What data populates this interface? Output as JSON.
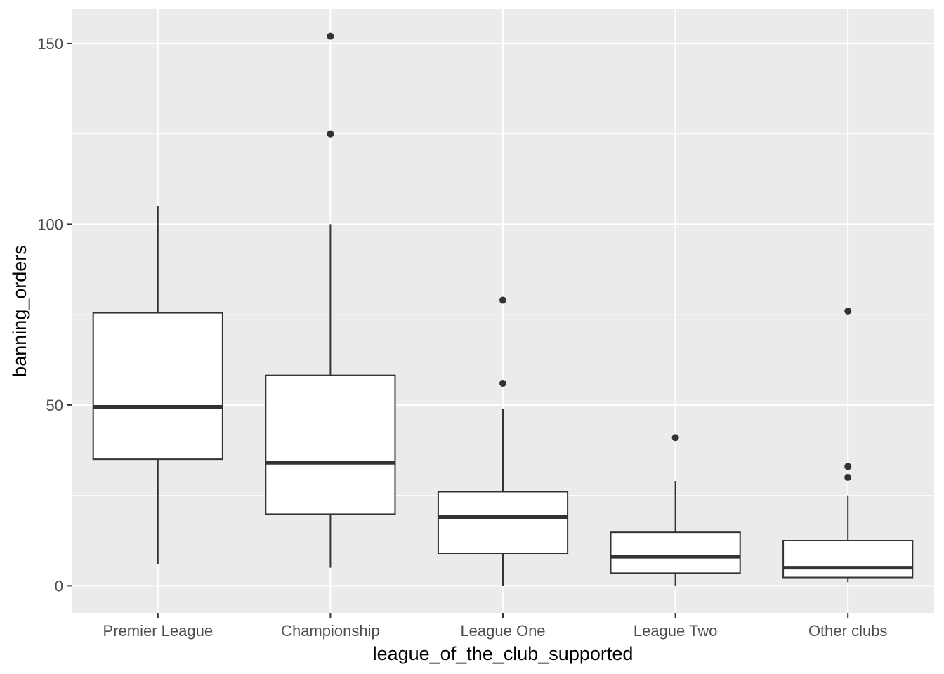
{
  "chart_data": {
    "type": "box",
    "xlabel": "league_of_the_club_supported",
    "ylabel": "banning_orders",
    "ylim": [
      -7.5,
      159.5
    ],
    "y_ticks": [
      0,
      50,
      100,
      150
    ],
    "y_minor_ticks": [
      25,
      75,
      125
    ],
    "grid": true,
    "categories": [
      "Premier League",
      "Championship",
      "League One",
      "League Two",
      "Other clubs"
    ],
    "boxes": [
      {
        "category": "Premier League",
        "whisker_low": 6,
        "q1": 35,
        "median": 49.5,
        "q3": 75.5,
        "whisker_high": 105,
        "outliers": []
      },
      {
        "category": "Championship",
        "whisker_low": 5,
        "q1": 19.8,
        "median": 34,
        "q3": 58.2,
        "whisker_high": 100,
        "outliers": [
          125,
          152
        ]
      },
      {
        "category": "League One",
        "whisker_low": 0,
        "q1": 9,
        "median": 19,
        "q3": 26,
        "whisker_high": 49,
        "outliers": [
          56,
          79
        ]
      },
      {
        "category": "League Two",
        "whisker_low": 0,
        "q1": 3.5,
        "median": 8,
        "q3": 14.8,
        "whisker_high": 29,
        "outliers": [
          41
        ]
      },
      {
        "category": "Other clubs",
        "whisker_low": 1,
        "q1": 2.3,
        "median": 5,
        "q3": 12.5,
        "whisker_high": 25,
        "outliers": [
          30,
          33,
          76
        ]
      }
    ],
    "colors": {
      "panel": "#ebebeb",
      "grid": "#ffffff",
      "box_fill": "#ffffff",
      "line": "#333333"
    }
  }
}
